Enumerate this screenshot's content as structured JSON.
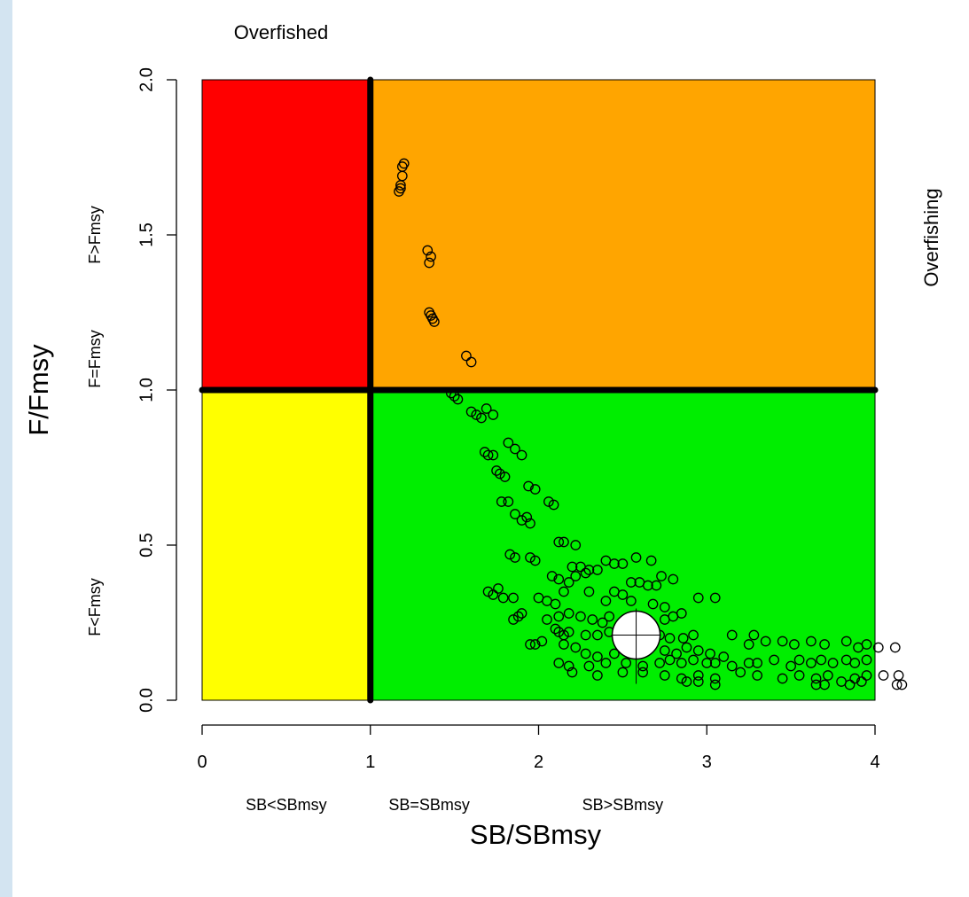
{
  "chart_data": {
    "type": "scatter",
    "xlabel": "SB/SBmsy",
    "ylabel": "F/Fmsy",
    "xlim": [
      0,
      4
    ],
    "ylim": [
      0,
      2
    ],
    "x_ticks": [
      0,
      1,
      2,
      3,
      4
    ],
    "x_tick_labels": [
      "0",
      "1",
      "2",
      "3",
      "4"
    ],
    "y_ticks": [
      0,
      0.5,
      1,
      1.5,
      2
    ],
    "y_tick_labels": [
      "0.0",
      "0.5",
      "1.0",
      "1.5",
      "2.0"
    ],
    "top_label": "Overfished",
    "right_label": "Overfishing",
    "x_zone_labels": [
      {
        "text": "SB<SBmsy",
        "x": 0.5
      },
      {
        "text": "SB=SBmsy",
        "x": 1.35
      },
      {
        "text": "SB>SBmsy",
        "x": 2.5
      }
    ],
    "y_zone_labels": [
      {
        "text": "F>Fmsy",
        "y": 1.5
      },
      {
        "text": "F=Fmsy",
        "y": 1.1
      },
      {
        "text": "F<Fmsy",
        "y": 0.3
      }
    ],
    "quadrants": [
      {
        "name": "overfished-and-overfishing",
        "x": [
          0,
          1
        ],
        "y": [
          1,
          2
        ],
        "color": "#ff0000"
      },
      {
        "name": "overfishing",
        "x": [
          1,
          4
        ],
        "y": [
          1,
          2
        ],
        "color": "#ffa500"
      },
      {
        "name": "overfished",
        "x": [
          0,
          1
        ],
        "y": [
          0,
          1
        ],
        "color": "#ffff00"
      },
      {
        "name": "sustainable",
        "x": [
          1,
          4
        ],
        "y": [
          0,
          1
        ],
        "color": "#00ee00"
      }
    ],
    "reference_lines": {
      "x": 1,
      "y": 1
    },
    "current_estimate": {
      "x": 2.58,
      "y": 0.21
    },
    "points": [
      [
        1.2,
        1.73
      ],
      [
        1.19,
        1.69
      ],
      [
        1.18,
        1.66
      ],
      [
        1.17,
        1.64
      ],
      [
        1.18,
        1.65
      ],
      [
        1.19,
        1.72
      ],
      [
        1.34,
        1.45
      ],
      [
        1.35,
        1.41
      ],
      [
        1.36,
        1.43
      ],
      [
        1.35,
        1.25
      ],
      [
        1.37,
        1.23
      ],
      [
        1.38,
        1.22
      ],
      [
        1.36,
        1.24
      ],
      [
        1.57,
        1.11
      ],
      [
        1.6,
        1.09
      ],
      [
        1.48,
        0.99
      ],
      [
        1.5,
        0.98
      ],
      [
        1.52,
        0.97
      ],
      [
        1.6,
        0.93
      ],
      [
        1.63,
        0.92
      ],
      [
        1.66,
        0.91
      ],
      [
        1.69,
        0.94
      ],
      [
        1.73,
        0.92
      ],
      [
        1.68,
        0.8
      ],
      [
        1.7,
        0.79
      ],
      [
        1.73,
        0.79
      ],
      [
        1.82,
        0.83
      ],
      [
        1.86,
        0.81
      ],
      [
        1.9,
        0.79
      ],
      [
        1.75,
        0.74
      ],
      [
        1.77,
        0.73
      ],
      [
        1.8,
        0.72
      ],
      [
        1.94,
        0.69
      ],
      [
        1.98,
        0.68
      ],
      [
        2.06,
        0.64
      ],
      [
        2.09,
        0.63
      ],
      [
        1.78,
        0.64
      ],
      [
        1.82,
        0.64
      ],
      [
        1.86,
        0.6
      ],
      [
        1.9,
        0.58
      ],
      [
        1.93,
        0.59
      ],
      [
        1.95,
        0.57
      ],
      [
        2.12,
        0.51
      ],
      [
        2.15,
        0.51
      ],
      [
        2.22,
        0.5
      ],
      [
        1.83,
        0.47
      ],
      [
        1.86,
        0.46
      ],
      [
        1.95,
        0.46
      ],
      [
        1.98,
        0.45
      ],
      [
        2.2,
        0.43
      ],
      [
        2.25,
        0.43
      ],
      [
        2.3,
        0.42
      ],
      [
        2.35,
        0.42
      ],
      [
        2.4,
        0.45
      ],
      [
        2.45,
        0.44
      ],
      [
        2.5,
        0.44
      ],
      [
        2.08,
        0.4
      ],
      [
        2.12,
        0.39
      ],
      [
        2.18,
        0.38
      ],
      [
        2.22,
        0.4
      ],
      [
        2.28,
        0.41
      ],
      [
        2.58,
        0.46
      ],
      [
        2.67,
        0.45
      ],
      [
        2.73,
        0.4
      ],
      [
        2.8,
        0.39
      ],
      [
        2.55,
        0.38
      ],
      [
        2.6,
        0.38
      ],
      [
        2.65,
        0.37
      ],
      [
        2.7,
        0.37
      ],
      [
        2.15,
        0.35
      ],
      [
        2.3,
        0.35
      ],
      [
        2.45,
        0.35
      ],
      [
        2.5,
        0.34
      ],
      [
        1.7,
        0.35
      ],
      [
        1.73,
        0.34
      ],
      [
        1.76,
        0.36
      ],
      [
        1.79,
        0.33
      ],
      [
        1.85,
        0.33
      ],
      [
        2.0,
        0.33
      ],
      [
        2.05,
        0.32
      ],
      [
        2.1,
        0.31
      ],
      [
        2.4,
        0.32
      ],
      [
        2.55,
        0.32
      ],
      [
        2.68,
        0.31
      ],
      [
        2.75,
        0.3
      ],
      [
        2.85,
        0.28
      ],
      [
        2.95,
        0.33
      ],
      [
        3.05,
        0.33
      ],
      [
        1.85,
        0.26
      ],
      [
        1.88,
        0.27
      ],
      [
        1.9,
        0.28
      ],
      [
        2.05,
        0.26
      ],
      [
        2.12,
        0.27
      ],
      [
        2.18,
        0.28
      ],
      [
        2.25,
        0.27
      ],
      [
        2.32,
        0.26
      ],
      [
        2.38,
        0.25
      ],
      [
        2.42,
        0.27
      ],
      [
        2.75,
        0.26
      ],
      [
        2.8,
        0.27
      ],
      [
        2.1,
        0.23
      ],
      [
        2.12,
        0.22
      ],
      [
        2.15,
        0.21
      ],
      [
        2.18,
        0.22
      ],
      [
        2.28,
        0.21
      ],
      [
        2.35,
        0.21
      ],
      [
        2.42,
        0.22
      ],
      [
        2.72,
        0.21
      ],
      [
        2.78,
        0.2
      ],
      [
        2.86,
        0.2
      ],
      [
        2.92,
        0.21
      ],
      [
        3.15,
        0.21
      ],
      [
        3.28,
        0.21
      ],
      [
        1.95,
        0.18
      ],
      [
        1.98,
        0.18
      ],
      [
        2.02,
        0.19
      ],
      [
        2.15,
        0.18
      ],
      [
        2.22,
        0.17
      ],
      [
        2.28,
        0.15
      ],
      [
        2.35,
        0.14
      ],
      [
        2.45,
        0.15
      ],
      [
        2.65,
        0.17
      ],
      [
        2.75,
        0.16
      ],
      [
        2.82,
        0.15
      ],
      [
        2.88,
        0.17
      ],
      [
        2.95,
        0.16
      ],
      [
        3.02,
        0.15
      ],
      [
        3.1,
        0.14
      ],
      [
        3.25,
        0.18
      ],
      [
        3.35,
        0.19
      ],
      [
        3.45,
        0.19
      ],
      [
        3.52,
        0.18
      ],
      [
        3.62,
        0.19
      ],
      [
        3.7,
        0.18
      ],
      [
        3.83,
        0.19
      ],
      [
        3.9,
        0.17
      ],
      [
        3.95,
        0.18
      ],
      [
        4.02,
        0.17
      ],
      [
        4.12,
        0.17
      ],
      [
        2.12,
        0.12
      ],
      [
        2.18,
        0.11
      ],
      [
        2.3,
        0.11
      ],
      [
        2.4,
        0.12
      ],
      [
        2.52,
        0.12
      ],
      [
        2.62,
        0.11
      ],
      [
        2.72,
        0.12
      ],
      [
        2.78,
        0.13
      ],
      [
        2.85,
        0.12
      ],
      [
        2.92,
        0.13
      ],
      [
        3.0,
        0.12
      ],
      [
        3.05,
        0.12
      ],
      [
        3.15,
        0.11
      ],
      [
        3.25,
        0.12
      ],
      [
        3.3,
        0.12
      ],
      [
        3.4,
        0.13
      ],
      [
        3.5,
        0.11
      ],
      [
        3.55,
        0.13
      ],
      [
        3.62,
        0.12
      ],
      [
        3.68,
        0.13
      ],
      [
        3.75,
        0.12
      ],
      [
        3.83,
        0.13
      ],
      [
        3.88,
        0.12
      ],
      [
        3.95,
        0.13
      ],
      [
        2.2,
        0.09
      ],
      [
        2.35,
        0.08
      ],
      [
        2.5,
        0.09
      ],
      [
        2.62,
        0.09
      ],
      [
        2.75,
        0.08
      ],
      [
        2.85,
        0.07
      ],
      [
        2.95,
        0.08
      ],
      [
        3.05,
        0.07
      ],
      [
        3.2,
        0.09
      ],
      [
        3.3,
        0.08
      ],
      [
        3.45,
        0.07
      ],
      [
        3.55,
        0.08
      ],
      [
        3.65,
        0.07
      ],
      [
        3.72,
        0.08
      ],
      [
        3.8,
        0.06
      ],
      [
        3.88,
        0.07
      ],
      [
        3.95,
        0.08
      ],
      [
        4.05,
        0.08
      ],
      [
        4.14,
        0.08
      ],
      [
        2.88,
        0.06
      ],
      [
        2.95,
        0.06
      ],
      [
        3.05,
        0.05
      ],
      [
        3.65,
        0.05
      ],
      [
        3.7,
        0.05
      ],
      [
        3.85,
        0.05
      ],
      [
        3.92,
        0.06
      ],
      [
        4.13,
        0.05
      ],
      [
        4.16,
        0.05
      ]
    ]
  }
}
